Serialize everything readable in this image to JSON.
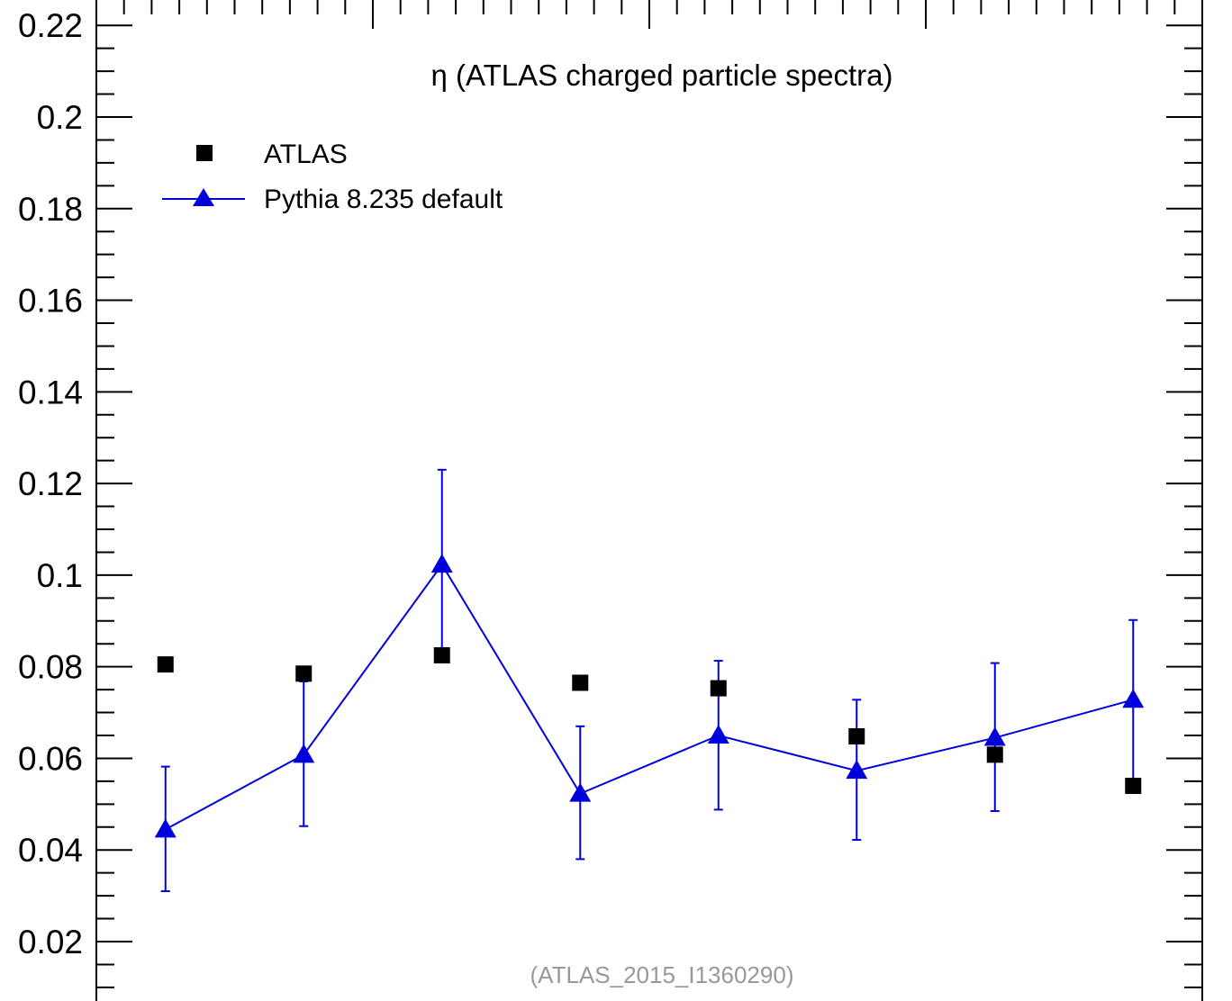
{
  "chart_data": {
    "type": "scatter",
    "title": "η (ATLAS charged particle spectra)",
    "annotation": "(ATLAS_2015_I1360290)",
    "xlabel": "",
    "ylabel": "",
    "ylim": [
      0.008,
      0.222
    ],
    "xlim": [
      0.5,
      8.5
    ],
    "y_ticks": [
      "0.02",
      "0.04",
      "0.06",
      "0.08",
      "0.1",
      "0.12",
      "0.14",
      "0.16",
      "0.18",
      "0.2",
      "0.22"
    ],
    "grid": false,
    "legend_position": "top-left",
    "x": [
      1,
      2,
      3,
      4,
      5,
      6,
      7,
      8
    ],
    "series": [
      {
        "name": "ATLAS",
        "marker": "square",
        "color": "#000000",
        "line": false,
        "values": [
          0.0805,
          0.0785,
          0.0825,
          0.0765,
          0.0753,
          0.0648,
          0.0608,
          0.054
        ]
      },
      {
        "name": "Pythia 8.235 default",
        "marker": "triangle",
        "color": "#0000dd",
        "line": true,
        "values": [
          0.0445,
          0.0608,
          0.1023,
          0.0523,
          0.065,
          0.0573,
          0.0645,
          0.0728
        ],
        "err_low": [
          0.031,
          0.0452,
          0.082,
          0.038,
          0.0488,
          0.0422,
          0.0485,
          0.0545
        ],
        "err_high": [
          0.0582,
          0.0768,
          0.123,
          0.067,
          0.0813,
          0.0728,
          0.0808,
          0.0902
        ]
      }
    ]
  }
}
